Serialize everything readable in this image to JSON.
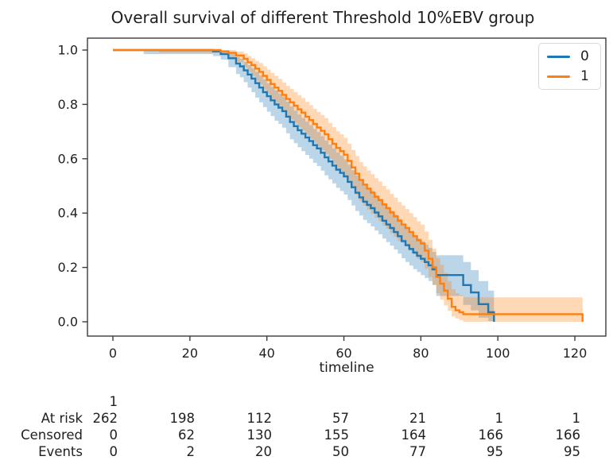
{
  "chart_data": {
    "type": "line",
    "subtype": "kaplan-meier-step",
    "title": "Overall survival of different Threshold 10%EBV group",
    "xlabel": "timeline",
    "ylabel": "",
    "xlim": [
      -6.6,
      128
    ],
    "ylim": [
      -0.05,
      1.04
    ],
    "grid": false,
    "legend_position": "upper right",
    "xtick_values": [
      0,
      20,
      40,
      60,
      80,
      100,
      120
    ],
    "xtick_labels": [
      "0",
      "20",
      "40",
      "60",
      "80",
      "100",
      "120"
    ],
    "ytick_values": [
      0.0,
      0.2,
      0.4,
      0.6,
      0.8,
      1.0
    ],
    "ytick_labels": [
      "0.0",
      "0.2",
      "0.4",
      "0.6",
      "0.8",
      "1.0"
    ],
    "series": [
      {
        "name": "0",
        "color": "#1f77b4",
        "band_opacity": 0.3,
        "points": [
          [
            0,
            1.0,
            1.0,
            1.0
          ],
          [
            8,
            1.0,
            0.985,
            1.0
          ],
          [
            26,
            0.995,
            0.978,
            1.0
          ],
          [
            28,
            0.985,
            0.965,
            0.998
          ],
          [
            30,
            0.97,
            0.937,
            0.99
          ],
          [
            32,
            0.95,
            0.912,
            0.975
          ],
          [
            33,
            0.94,
            0.9,
            0.968
          ],
          [
            34,
            0.925,
            0.882,
            0.956
          ],
          [
            35,
            0.91,
            0.862,
            0.945
          ],
          [
            36,
            0.895,
            0.845,
            0.933
          ],
          [
            37,
            0.878,
            0.825,
            0.92
          ],
          [
            38,
            0.862,
            0.808,
            0.906
          ],
          [
            39,
            0.845,
            0.79,
            0.892
          ],
          [
            40,
            0.83,
            0.773,
            0.878
          ],
          [
            41,
            0.815,
            0.757,
            0.865
          ],
          [
            42,
            0.8,
            0.74,
            0.852
          ],
          [
            43,
            0.788,
            0.728,
            0.84
          ],
          [
            44,
            0.775,
            0.714,
            0.828
          ],
          [
            45,
            0.755,
            0.694,
            0.81
          ],
          [
            46,
            0.735,
            0.672,
            0.792
          ],
          [
            47,
            0.72,
            0.657,
            0.777
          ],
          [
            48,
            0.705,
            0.642,
            0.763
          ],
          [
            49,
            0.692,
            0.628,
            0.75
          ],
          [
            50,
            0.678,
            0.614,
            0.737
          ],
          [
            51,
            0.665,
            0.6,
            0.724
          ],
          [
            52,
            0.65,
            0.585,
            0.71
          ],
          [
            53,
            0.638,
            0.573,
            0.698
          ],
          [
            54,
            0.622,
            0.556,
            0.683
          ],
          [
            55,
            0.605,
            0.539,
            0.667
          ],
          [
            56,
            0.59,
            0.524,
            0.652
          ],
          [
            57,
            0.575,
            0.509,
            0.638
          ],
          [
            58,
            0.56,
            0.493,
            0.623
          ],
          [
            59,
            0.548,
            0.481,
            0.611
          ],
          [
            60,
            0.535,
            0.468,
            0.598
          ],
          [
            61,
            0.515,
            0.448,
            0.578
          ],
          [
            62,
            0.495,
            0.428,
            0.558
          ],
          [
            63,
            0.475,
            0.408,
            0.539
          ],
          [
            64,
            0.458,
            0.391,
            0.522
          ],
          [
            65,
            0.442,
            0.375,
            0.506
          ],
          [
            66,
            0.43,
            0.363,
            0.494
          ],
          [
            67,
            0.418,
            0.351,
            0.482
          ],
          [
            68,
            0.402,
            0.336,
            0.466
          ],
          [
            69,
            0.388,
            0.322,
            0.452
          ],
          [
            70,
            0.372,
            0.306,
            0.436
          ],
          [
            71,
            0.358,
            0.293,
            0.422
          ],
          [
            72,
            0.345,
            0.28,
            0.409
          ],
          [
            73,
            0.33,
            0.266,
            0.394
          ],
          [
            74,
            0.315,
            0.251,
            0.379
          ],
          [
            75,
            0.297,
            0.234,
            0.361
          ],
          [
            76,
            0.282,
            0.22,
            0.346
          ],
          [
            77,
            0.268,
            0.207,
            0.332
          ],
          [
            78,
            0.255,
            0.194,
            0.319
          ],
          [
            79,
            0.243,
            0.183,
            0.307
          ],
          [
            80,
            0.232,
            0.172,
            0.296
          ],
          [
            81,
            0.22,
            0.161,
            0.284
          ],
          [
            82,
            0.208,
            0.15,
            0.272
          ],
          [
            83,
            0.193,
            0.136,
            0.257
          ],
          [
            84,
            0.172,
            0.095,
            0.245
          ],
          [
            91,
            0.135,
            0.062,
            0.22
          ],
          [
            93,
            0.108,
            0.042,
            0.19
          ],
          [
            95,
            0.065,
            0.015,
            0.15
          ],
          [
            97.5,
            0.035,
            0.003,
            0.115
          ],
          [
            99,
            0.035,
            0.0,
            0.095
          ],
          [
            99,
            0.0,
            0.0,
            0.095
          ]
        ]
      },
      {
        "name": "1",
        "color": "#ff7f0e",
        "band_opacity": 0.3,
        "points": [
          [
            0,
            1.0,
            1.0,
            1.0
          ],
          [
            12,
            1.0,
            0.99,
            1.0
          ],
          [
            28,
            0.995,
            0.982,
            1.0
          ],
          [
            30,
            0.99,
            0.972,
            1.0
          ],
          [
            32,
            0.98,
            0.955,
            0.995
          ],
          [
            34,
            0.968,
            0.937,
            0.988
          ],
          [
            35,
            0.955,
            0.92,
            0.978
          ],
          [
            36,
            0.945,
            0.905,
            0.97
          ],
          [
            37,
            0.932,
            0.888,
            0.96
          ],
          [
            38,
            0.92,
            0.873,
            0.952
          ],
          [
            39,
            0.905,
            0.855,
            0.94
          ],
          [
            40,
            0.89,
            0.838,
            0.928
          ],
          [
            41,
            0.875,
            0.82,
            0.916
          ],
          [
            42,
            0.862,
            0.806,
            0.905
          ],
          [
            43,
            0.85,
            0.792,
            0.894
          ],
          [
            44,
            0.835,
            0.776,
            0.881
          ],
          [
            45,
            0.82,
            0.758,
            0.868
          ],
          [
            46,
            0.808,
            0.745,
            0.857
          ],
          [
            47,
            0.795,
            0.731,
            0.845
          ],
          [
            48,
            0.782,
            0.717,
            0.834
          ],
          [
            49,
            0.77,
            0.704,
            0.823
          ],
          [
            50,
            0.755,
            0.688,
            0.809
          ],
          [
            51,
            0.742,
            0.674,
            0.797
          ],
          [
            52,
            0.728,
            0.659,
            0.784
          ],
          [
            53,
            0.715,
            0.645,
            0.772
          ],
          [
            54,
            0.703,
            0.632,
            0.761
          ],
          [
            55,
            0.69,
            0.618,
            0.749
          ],
          [
            56,
            0.672,
            0.6,
            0.732
          ],
          [
            57,
            0.655,
            0.582,
            0.716
          ],
          [
            58,
            0.64,
            0.566,
            0.701
          ],
          [
            59,
            0.628,
            0.553,
            0.69
          ],
          [
            60,
            0.615,
            0.54,
            0.677
          ],
          [
            61,
            0.592,
            0.516,
            0.655
          ],
          [
            62,
            0.568,
            0.492,
            0.632
          ],
          [
            63,
            0.545,
            0.468,
            0.61
          ],
          [
            64,
            0.522,
            0.445,
            0.588
          ],
          [
            65,
            0.505,
            0.428,
            0.572
          ],
          [
            66,
            0.49,
            0.413,
            0.557
          ],
          [
            67,
            0.475,
            0.398,
            0.543
          ],
          [
            68,
            0.46,
            0.383,
            0.528
          ],
          [
            69,
            0.448,
            0.371,
            0.516
          ],
          [
            70,
            0.432,
            0.355,
            0.5
          ],
          [
            71,
            0.418,
            0.342,
            0.487
          ],
          [
            72,
            0.402,
            0.326,
            0.471
          ],
          [
            73,
            0.388,
            0.313,
            0.457
          ],
          [
            74,
            0.372,
            0.297,
            0.441
          ],
          [
            75,
            0.358,
            0.29,
            0.428
          ],
          [
            76,
            0.345,
            0.277,
            0.415
          ],
          [
            77,
            0.33,
            0.262,
            0.4
          ],
          [
            78,
            0.315,
            0.247,
            0.385
          ],
          [
            79,
            0.3,
            0.232,
            0.37
          ],
          [
            80,
            0.288,
            0.22,
            0.358
          ],
          [
            81,
            0.262,
            0.195,
            0.332
          ],
          [
            82,
            0.232,
            0.165,
            0.302
          ],
          [
            83,
            0.2,
            0.135,
            0.27
          ],
          [
            84,
            0.165,
            0.105,
            0.235
          ],
          [
            85,
            0.14,
            0.082,
            0.21
          ],
          [
            86,
            0.115,
            0.06,
            0.18
          ],
          [
            87,
            0.085,
            0.04,
            0.15
          ],
          [
            88,
            0.055,
            0.02,
            0.12
          ],
          [
            89,
            0.042,
            0.012,
            0.105
          ],
          [
            90,
            0.035,
            0.006,
            0.098
          ],
          [
            91,
            0.028,
            0.0,
            0.09
          ],
          [
            122,
            0.028,
            0.0,
            0.09
          ],
          [
            122,
            0.0,
            0.0,
            0.09
          ]
        ]
      }
    ]
  },
  "legend": {
    "items": [
      {
        "label": "0",
        "color": "#1f77b4"
      },
      {
        "label": "1",
        "color": "#ff7f0e"
      }
    ]
  },
  "risk_table": {
    "rows": [
      {
        "label": "",
        "values": [
          "1",
          "",
          "",
          "",
          "",
          "",
          ""
        ]
      },
      {
        "label": "At risk",
        "values": [
          "262",
          "198",
          "112",
          "57",
          "21",
          "1",
          "1"
        ]
      },
      {
        "label": "Censored",
        "values": [
          "0",
          "62",
          "130",
          "155",
          "164",
          "166",
          "166"
        ]
      },
      {
        "label": "Events",
        "values": [
          "0",
          "2",
          "20",
          "50",
          "77",
          "95",
          "95"
        ]
      }
    ]
  },
  "style": {
    "axis_color": "#3b3b3b",
    "text_color": "#1f1f1f"
  }
}
